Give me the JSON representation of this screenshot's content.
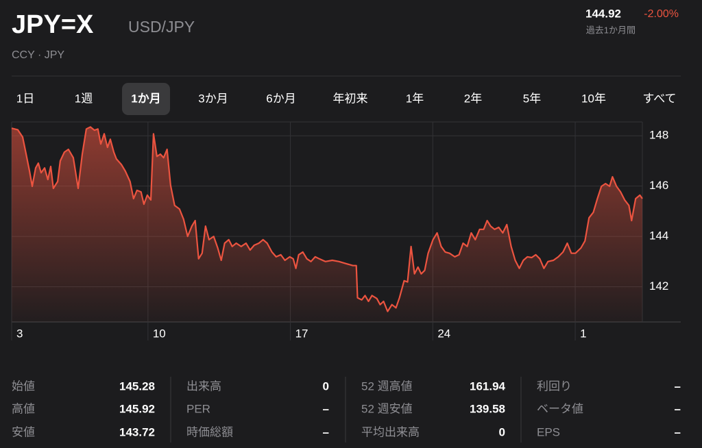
{
  "header": {
    "symbol": "JPY=X",
    "name": "USD/JPY",
    "exchange": "CCY · JPY",
    "price": "144.92",
    "change": "-2.00%",
    "period": "過去1か月間"
  },
  "ranges": [
    "1日",
    "1週",
    "1か月",
    "3か月",
    "6か月",
    "年初来",
    "1年",
    "2年",
    "5年",
    "10年",
    "すべて"
  ],
  "selected_range": 2,
  "chart_data": {
    "type": "line",
    "color": "#ec5440",
    "x": [
      0,
      0.3,
      0.54,
      0.71,
      0.88,
      1.01,
      1.18,
      1.31,
      1.45,
      1.62,
      1.78,
      1.92,
      2.05,
      2.26,
      2.39,
      2.59,
      2.79,
      3.03,
      3.27,
      3.47,
      3.67,
      3.87,
      4.07,
      4.24,
      4.38,
      4.55,
      4.71,
      4.85,
      5.02,
      5.15,
      5.39,
      5.59,
      5.82,
      5.99,
      6.16,
      6.36,
      6.5,
      6.67,
      6.84,
      6.97,
      7.14,
      7.31,
      7.47,
      7.64,
      7.81,
      8.01,
      8.25,
      8.45,
      8.65,
      8.86,
      9.02,
      9.19,
      9.36,
      9.53,
      9.7,
      9.93,
      10.13,
      10.3,
      10.47,
      10.67,
      10.84,
      11.04,
      11.28,
      11.52,
      11.72,
      11.92,
      12.15,
      12.36,
      12.56,
      12.79,
      13.0,
      13.23,
      13.43,
      13.67,
      13.84,
      13.97,
      14.11,
      14.31,
      14.51,
      14.71,
      14.92,
      15.12,
      15.42,
      15.76,
      16.09,
      16.43,
      16.77,
      16.94,
      17.0,
      17.21,
      17.37,
      17.54,
      17.71,
      17.95,
      18.11,
      18.28,
      18.48,
      18.69,
      18.89,
      19.06,
      19.29,
      19.46,
      19.63,
      19.8,
      19.97,
      20.13,
      20.3,
      20.47,
      20.71,
      20.91,
      21.11,
      21.31,
      21.52,
      21.78,
      21.99,
      22.19,
      22.39,
      22.59,
      22.79,
      23.0,
      23.2,
      23.37,
      23.54,
      23.74,
      23.94,
      24.14,
      24.34,
      24.55,
      24.75,
      24.95,
      25.15,
      25.35,
      25.56,
      25.76,
      25.96,
      26.16,
      26.36,
      26.63,
      26.87,
      27.1,
      27.31,
      27.51,
      27.71,
      27.98,
      28.18,
      28.38,
      28.59,
      28.79,
      28.99,
      29.19,
      29.39,
      29.53,
      29.73,
      29.93,
      30.13,
      30.34,
      30.47,
      30.67,
      30.88,
      31.0
    ],
    "values": [
      148.3,
      148.24,
      147.95,
      147.27,
      146.59,
      145.99,
      146.72,
      146.91,
      146.53,
      146.72,
      146.26,
      146.78,
      145.91,
      146.18,
      147.0,
      147.35,
      147.46,
      147.13,
      145.91,
      147.27,
      148.27,
      148.35,
      148.22,
      148.27,
      147.67,
      148.08,
      147.54,
      147.86,
      147.35,
      147.08,
      146.86,
      146.59,
      146.18,
      145.5,
      145.83,
      145.77,
      145.28,
      145.64,
      145.45,
      148.08,
      147.18,
      147.27,
      147.13,
      147.46,
      146.04,
      145.23,
      145.09,
      144.68,
      144.0,
      144.41,
      144.63,
      143.11,
      143.33,
      144.41,
      143.87,
      144.0,
      143.54,
      143.05,
      143.73,
      143.87,
      143.6,
      143.73,
      143.6,
      143.73,
      143.46,
      143.65,
      143.73,
      143.87,
      143.73,
      143.38,
      143.19,
      143.27,
      143.05,
      143.19,
      143.11,
      142.73,
      143.27,
      143.38,
      143.11,
      143.0,
      143.19,
      143.11,
      143.0,
      143.05,
      143.0,
      142.92,
      142.84,
      142.84,
      141.56,
      141.48,
      141.65,
      141.42,
      141.65,
      141.53,
      141.29,
      141.42,
      141.02,
      141.29,
      141.16,
      141.56,
      142.24,
      142.19,
      143.6,
      142.51,
      142.78,
      142.51,
      142.65,
      143.33,
      143.87,
      144.14,
      143.6,
      143.38,
      143.33,
      143.19,
      143.27,
      143.73,
      143.6,
      144.14,
      143.87,
      144.28,
      144.28,
      144.63,
      144.41,
      144.28,
      144.36,
      144.14,
      144.47,
      143.6,
      143.05,
      142.73,
      143.05,
      143.19,
      143.16,
      143.27,
      143.11,
      142.73,
      143.0,
      143.05,
      143.19,
      143.38,
      143.73,
      143.33,
      143.33,
      143.54,
      143.82,
      144.74,
      144.96,
      145.5,
      145.99,
      146.1,
      145.99,
      146.37,
      145.99,
      145.77,
      145.45,
      145.23,
      144.63,
      145.5,
      145.64,
      145.5
    ],
    "xlim": [
      0,
      31
    ],
    "xticks": [
      {
        "value": 0,
        "label": "3"
      },
      {
        "value": 6.7,
        "label": "10"
      },
      {
        "value": 13.7,
        "label": "17"
      },
      {
        "value": 20.7,
        "label": "24"
      },
      {
        "value": 27.7,
        "label": "1"
      }
    ],
    "ylim": [
      140.6,
      148.55
    ],
    "yticks": [
      142,
      144,
      146,
      148
    ],
    "grid": true
  },
  "stats": [
    [
      {
        "label": "始値",
        "value": "145.28"
      },
      {
        "label": "高値",
        "value": "145.92"
      },
      {
        "label": "安値",
        "value": "143.72"
      }
    ],
    [
      {
        "label": "出来高",
        "value": "0"
      },
      {
        "label": "PER",
        "value": "–"
      },
      {
        "label": "時価総額",
        "value": "–"
      }
    ],
    [
      {
        "label": "52 週高値",
        "value": "161.94"
      },
      {
        "label": "52 週安値",
        "value": "139.58"
      },
      {
        "label": "平均出来高",
        "value": "0"
      }
    ],
    [
      {
        "label": "利回り",
        "value": "–"
      },
      {
        "label": "ベータ値",
        "value": "–"
      },
      {
        "label": "EPS",
        "value": "–"
      }
    ]
  ]
}
